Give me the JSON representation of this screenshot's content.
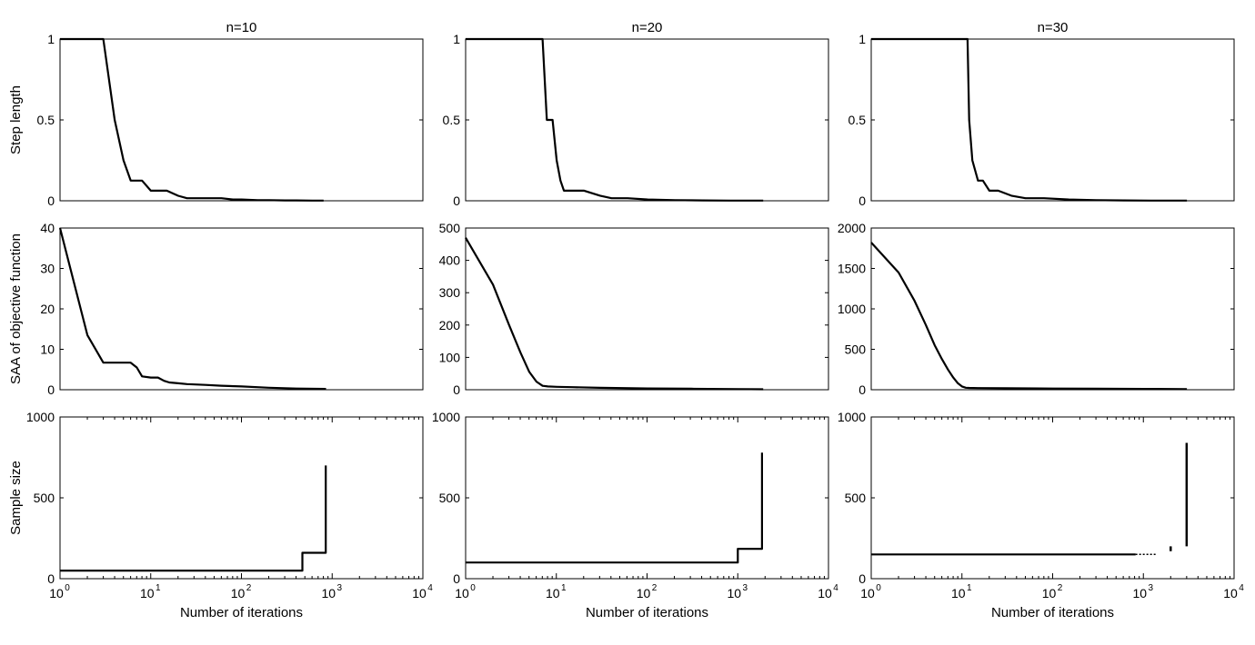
{
  "figure": {
    "column_titles": [
      "n=10",
      "n=20",
      "n=30"
    ],
    "row_ylabels": [
      "Step length",
      "SAA of objective function",
      "Sample size"
    ],
    "xlabel": "Number of iterations",
    "line_color": "#000000"
  },
  "chart_data": [
    {
      "type": "line",
      "row": 0,
      "col": 0,
      "title": "n=10",
      "xlabel": "",
      "ylabel": "Step length",
      "xscale": "log",
      "xlim": [
        1,
        850
      ],
      "ylim": [
        0,
        1
      ],
      "yticks": [
        0,
        0.5,
        1
      ],
      "ytick_labels": [
        "0",
        "0.5",
        "1"
      ],
      "grid": false,
      "x": [
        1,
        3,
        4,
        5,
        6,
        8,
        10,
        15,
        20,
        25,
        40,
        60,
        80,
        100,
        150,
        200,
        300,
        400,
        600,
        800
      ],
      "y": [
        1,
        1,
        0.5,
        0.25,
        0.125,
        0.125,
        0.0625,
        0.0625,
        0.031,
        0.0156,
        0.0156,
        0.0156,
        0.008,
        0.008,
        0.004,
        0.004,
        0.002,
        0.002,
        0.001,
        0.001
      ]
    },
    {
      "type": "line",
      "row": 0,
      "col": 1,
      "title": "n=20",
      "xlabel": "",
      "ylabel": "",
      "xscale": "log",
      "xlim": [
        1,
        1850
      ],
      "ylim": [
        0,
        1
      ],
      "yticks": [
        0,
        0.5,
        1
      ],
      "ytick_labels": [
        "0",
        "0.5",
        "1"
      ],
      "grid": false,
      "x": [
        1,
        7,
        7.8,
        9,
        10,
        11,
        12,
        14,
        20,
        30,
        40,
        60,
        100,
        200,
        400,
        800,
        1500,
        1850
      ],
      "y": [
        1,
        1,
        0.5,
        0.5,
        0.25,
        0.125,
        0.0625,
        0.0625,
        0.0625,
        0.0312,
        0.0156,
        0.0156,
        0.008,
        0.004,
        0.002,
        0.001,
        0.001,
        0.001
      ]
    },
    {
      "type": "line",
      "row": 0,
      "col": 2,
      "title": "n=30",
      "xlabel": "",
      "ylabel": "",
      "xscale": "log",
      "xlim": [
        1,
        3000
      ],
      "ylim": [
        0,
        1
      ],
      "yticks": [
        0,
        0.5,
        1
      ],
      "ytick_labels": [
        "0",
        "0.5",
        "1"
      ],
      "grid": false,
      "x": [
        1,
        11.5,
        12,
        13,
        15,
        17,
        20,
        25,
        35,
        50,
        80,
        150,
        300,
        600,
        1200,
        3000
      ],
      "y": [
        1,
        1,
        0.5,
        0.25,
        0.125,
        0.125,
        0.0625,
        0.0625,
        0.0312,
        0.0156,
        0.0156,
        0.008,
        0.004,
        0.002,
        0.001,
        0.001
      ]
    },
    {
      "type": "line",
      "row": 1,
      "col": 0,
      "title": "",
      "xlabel": "",
      "ylabel": "SAA of objective function",
      "xscale": "log",
      "xlim": [
        1,
        850
      ],
      "ylim": [
        0,
        40
      ],
      "yticks": [
        0,
        10,
        20,
        30,
        40
      ],
      "ytick_labels": [
        "0",
        "10",
        "20",
        "30",
        "40"
      ],
      "grid": false,
      "x": [
        1,
        2,
        3,
        4,
        5,
        6,
        7,
        8,
        10,
        12,
        14,
        16,
        20,
        25,
        40,
        60,
        100,
        200,
        400,
        850
      ],
      "y": [
        40,
        13.5,
        6.7,
        6.7,
        6.7,
        6.7,
        5.5,
        3.3,
        3.0,
        3.0,
        2.2,
        1.8,
        1.6,
        1.4,
        1.2,
        1.0,
        0.8,
        0.5,
        0.3,
        0.2
      ]
    },
    {
      "type": "line",
      "row": 1,
      "col": 1,
      "title": "",
      "xlabel": "",
      "ylabel": "",
      "xscale": "log",
      "xlim": [
        1,
        1850
      ],
      "ylim": [
        0,
        500
      ],
      "yticks": [
        0,
        100,
        200,
        300,
        400,
        500
      ],
      "ytick_labels": [
        "0",
        "100",
        "200",
        "300",
        "400",
        "500"
      ],
      "grid": false,
      "x": [
        1,
        2,
        3,
        4,
        5,
        6,
        7,
        8,
        10,
        15,
        30,
        100,
        300,
        1000,
        1850
      ],
      "y": [
        470,
        325,
        200,
        115,
        55,
        25,
        12,
        10,
        9,
        8,
        6,
        4,
        3,
        2,
        1.5
      ]
    },
    {
      "type": "line",
      "row": 1,
      "col": 2,
      "title": "",
      "xlabel": "",
      "ylabel": "",
      "xscale": "log",
      "xlim": [
        1,
        3000
      ],
      "ylim": [
        0,
        2000
      ],
      "yticks": [
        0,
        500,
        1000,
        1500,
        2000
      ],
      "ytick_labels": [
        "0",
        "500",
        "1000",
        "1500",
        "2000"
      ],
      "grid": false,
      "x": [
        1,
        2,
        3,
        4,
        5,
        6,
        7,
        8,
        9,
        10,
        11,
        12,
        15,
        30,
        100,
        300,
        1000,
        3000
      ],
      "y": [
        1820,
        1450,
        1100,
        800,
        550,
        380,
        250,
        150,
        80,
        40,
        25,
        22,
        20,
        18,
        15,
        12,
        10,
        8
      ]
    },
    {
      "type": "line",
      "row": 2,
      "col": 0,
      "title": "",
      "xlabel": "Number of iterations",
      "ylabel": "Sample size",
      "xscale": "log",
      "xlim": [
        1,
        10000
      ],
      "ylim": [
        0,
        1000
      ],
      "yticks": [
        0,
        500,
        1000
      ],
      "ytick_labels": [
        "0",
        "500",
        "1000"
      ],
      "xticks": [
        1,
        10,
        100,
        1000,
        10000
      ],
      "grid": false,
      "x": [
        1,
        470,
        470,
        850,
        850
      ],
      "y": [
        50,
        50,
        160,
        160,
        700
      ]
    },
    {
      "type": "line",
      "row": 2,
      "col": 1,
      "title": "",
      "xlabel": "Number of iterations",
      "ylabel": "",
      "xscale": "log",
      "xlim": [
        1,
        10000
      ],
      "ylim": [
        0,
        1000
      ],
      "yticks": [
        0,
        500,
        1000
      ],
      "ytick_labels": [
        "0",
        "500",
        "1000"
      ],
      "xticks": [
        1,
        10,
        100,
        1000,
        10000
      ],
      "grid": false,
      "x": [
        1,
        1000,
        1000,
        1850,
        1850
      ],
      "y": [
        100,
        100,
        185,
        185,
        780
      ]
    },
    {
      "type": "line",
      "row": 2,
      "col": 2,
      "title": "",
      "xlabel": "Number of iterations",
      "ylabel": "",
      "xscale": "log",
      "xlim": [
        1,
        10000
      ],
      "ylim": [
        0,
        1000
      ],
      "yticks": [
        0,
        500,
        1000
      ],
      "ytick_labels": [
        "0",
        "500",
        "1000"
      ],
      "xticks": [
        1,
        10,
        100,
        1000,
        10000
      ],
      "grid": false,
      "x": [
        1,
        820
      ],
      "y": [
        150,
        150
      ],
      "extra_segments": [
        {
          "x": [
            820,
            1400
          ],
          "y": [
            150,
            150
          ],
          "style": "dotted"
        },
        {
          "x": [
            2000,
            2000
          ],
          "y": [
            170,
            200
          ],
          "style": "solid"
        },
        {
          "x": [
            3000,
            3000
          ],
          "y": [
            200,
            840
          ],
          "style": "solid"
        }
      ]
    }
  ]
}
